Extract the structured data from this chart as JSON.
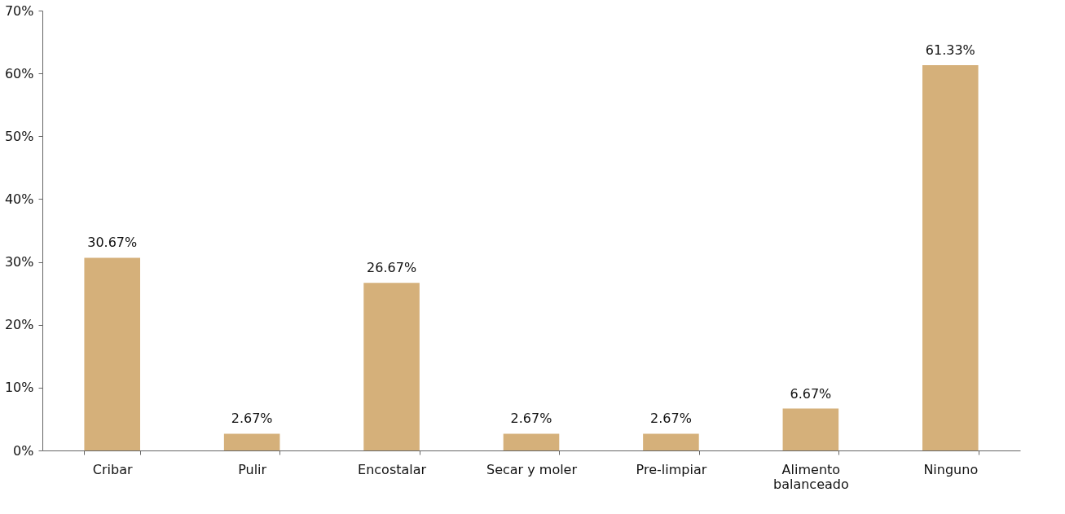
{
  "chart_data": {
    "type": "bar",
    "categories": [
      "Cribar",
      "Pulir",
      "Encostalar",
      "Secar y moler",
      "Pre-limpiar",
      "Alimento balanceado",
      "Ninguno"
    ],
    "values": [
      30.67,
      2.67,
      26.67,
      2.67,
      2.67,
      6.67,
      61.33
    ],
    "value_labels": [
      "30.67%",
      "2.67%",
      "26.67%",
      "2.67%",
      "2.67%",
      "6.67%",
      "61.33%"
    ],
    "color": "#d5b07a",
    "ylim": [
      0,
      70
    ],
    "yticks": [
      {
        "value": 0,
        "label": "0%"
      },
      {
        "value": 10,
        "label": "10%"
      },
      {
        "value": 20,
        "label": "20%"
      },
      {
        "value": 30,
        "label": "30%"
      },
      {
        "value": 40,
        "label": "40%"
      },
      {
        "value": 50,
        "label": "50%"
      },
      {
        "value": 60,
        "label": "60%"
      },
      {
        "value": 70,
        "label": "70%"
      }
    ],
    "grid": false
  }
}
